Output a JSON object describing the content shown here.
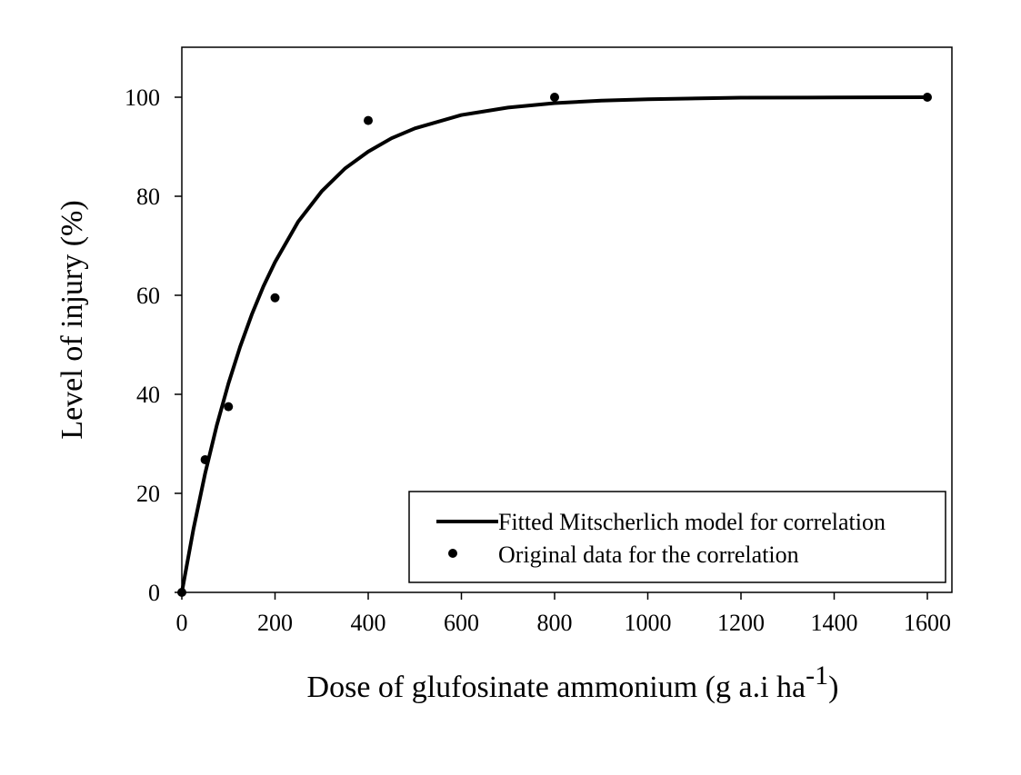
{
  "chart_data": {
    "type": "scatter",
    "title": "",
    "xlabel": "Dose of glufosinate ammonium (g a.i ha",
    "xlabel_superscript": "-1",
    "xlabel_suffix": ")",
    "ylabel": "Level of injury (%)",
    "xlim": [
      0,
      1650
    ],
    "ylim": [
      0,
      110
    ],
    "x_ticks": [
      0,
      200,
      400,
      600,
      800,
      1000,
      1200,
      1400,
      1600
    ],
    "y_ticks": [
      0,
      20,
      40,
      60,
      80,
      100
    ],
    "grid": false,
    "legend_placement": "bottom-right",
    "series": [
      {
        "name": "Fitted Mitscherlich model  for correlation",
        "kind": "line",
        "color": "#000000",
        "x": [
          0,
          25,
          50,
          75,
          100,
          125,
          150,
          175,
          200,
          250,
          300,
          350,
          400,
          450,
          500,
          600,
          700,
          800,
          900,
          1000,
          1200,
          1400,
          1600
        ],
        "y": [
          0,
          12.8,
          24.0,
          33.7,
          42.2,
          49.6,
          56.1,
          61.8,
          66.7,
          74.9,
          81.0,
          85.6,
          89.0,
          91.7,
          93.7,
          96.4,
          97.9,
          98.8,
          99.3,
          99.6,
          99.9,
          99.95,
          100
        ]
      },
      {
        "name": "Original data for the correlation",
        "kind": "scatter",
        "color": "#000000",
        "x": [
          0,
          50,
          100,
          200,
          400,
          800,
          1600
        ],
        "y": [
          0,
          26.8,
          37.5,
          59.5,
          95.3,
          100,
          100
        ]
      }
    ]
  }
}
